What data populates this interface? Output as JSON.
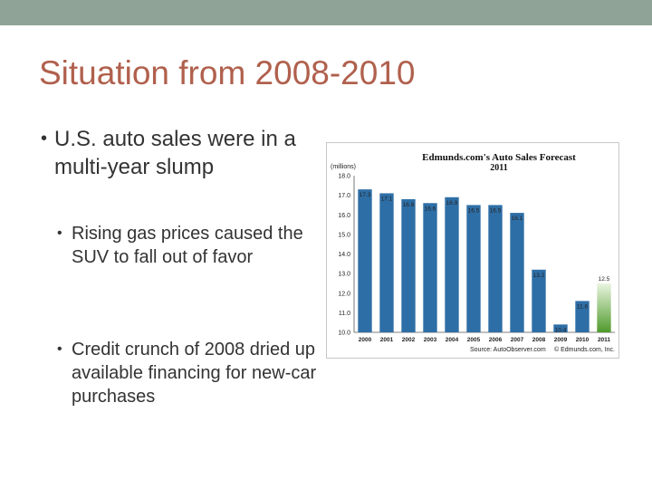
{
  "slide": {
    "title": "Situation from 2008-2010",
    "bullets": [
      {
        "text": "U.S. auto sales were in a multi-year slump",
        "level": 1
      },
      {
        "text": "Rising gas prices caused the SUV to fall out of favor",
        "level": 2
      },
      {
        "text": "Credit crunch of 2008 dried up available financing for new-car purchases",
        "level": 2
      }
    ],
    "bullet_glyph": "•"
  },
  "chart_data": {
    "type": "bar",
    "title": "Edmunds.com's Auto Sales Forecast",
    "subtitle": "2011",
    "ylabel": "(millions)",
    "categories": [
      "2000",
      "2001",
      "2002",
      "2003",
      "2004",
      "2005",
      "2006",
      "2007",
      "2008",
      "2009",
      "2010",
      "2011"
    ],
    "values": [
      17.3,
      17.1,
      16.8,
      16.6,
      16.9,
      16.5,
      16.5,
      16.1,
      13.2,
      10.4,
      11.6,
      12.5
    ],
    "data_labels": [
      "17.3",
      "17.1",
      "16.8",
      "16.6",
      "16.9",
      "16.5",
      "16.5",
      "16.1",
      "13.2",
      "10.4",
      "11.6",
      "12.5"
    ],
    "yticks": [
      "18.0",
      "17.0",
      "16.0",
      "15.0",
      "14.0",
      "13.0",
      "12.0",
      "11.0",
      "10.0"
    ],
    "ylim": [
      10,
      18
    ],
    "grid": false,
    "source_left": "Source: AutoObserver.com",
    "source_right": "© Edmunds.com, Inc.",
    "colors": {
      "bar": "#2e6ea6",
      "forecast_top": "#eaf5e0",
      "forecast_bottom": "#4f9a2c",
      "label": "#ffffff"
    }
  }
}
